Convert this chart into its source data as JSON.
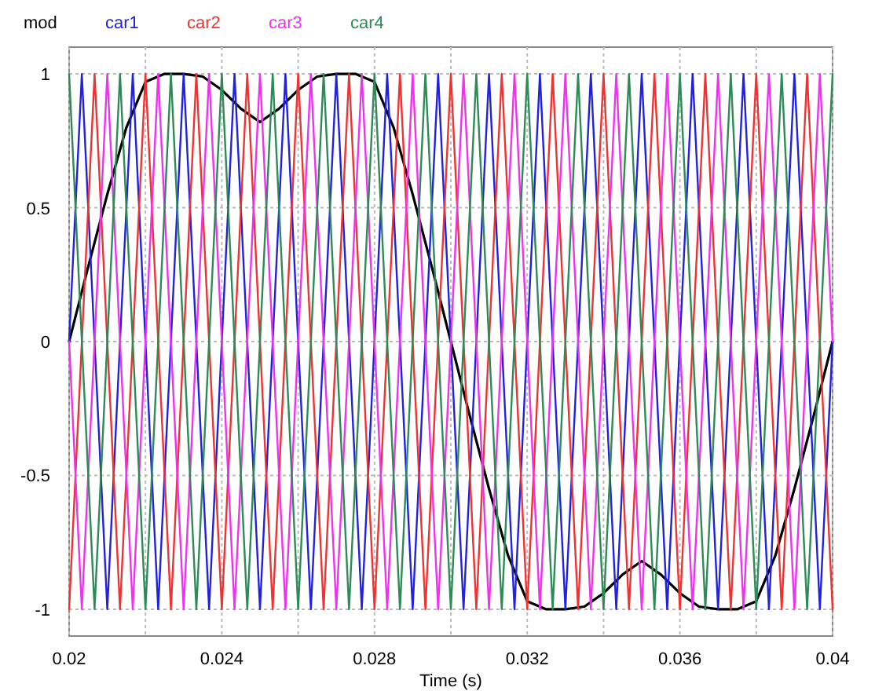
{
  "chart_data": {
    "type": "line",
    "xlabel": "Time (s)",
    "xlim": [
      0.02,
      0.04
    ],
    "ylim": [
      -1.1,
      1.1
    ],
    "xticks": [
      0.02,
      {
        "value": 0.022,
        "label": null
      },
      0.024,
      {
        "value": 0.026,
        "label": null
      },
      0.028,
      {
        "value": 0.03,
        "label": null
      },
      0.032,
      {
        "value": 0.034,
        "label": null
      },
      0.036,
      {
        "value": 0.038,
        "label": null
      },
      0.04
    ],
    "yticks": [
      -1,
      -0.5,
      0,
      0.5,
      1
    ],
    "grid": true,
    "legend": "top left",
    "marker": "none",
    "line_style": "solid",
    "series": [
      {
        "name": "mod",
        "color": "#000000",
        "x": [
          0.02,
          0.0205,
          0.021,
          0.0215,
          0.022,
          0.0225,
          0.023,
          0.0235,
          0.024,
          0.0245,
          0.025,
          0.0255,
          0.026,
          0.0265,
          0.027,
          0.0275,
          0.028,
          0.0285,
          0.029,
          0.0295,
          0.03,
          0.0305,
          0.031,
          0.0315,
          0.032,
          0.0325,
          0.033,
          0.0335,
          0.034,
          0.0345,
          0.035,
          0.0355,
          0.036,
          0.0365,
          0.037,
          0.0375,
          0.038,
          0.0385,
          0.039,
          0.0395,
          0.04
        ],
        "values": [
          0,
          0.28,
          0.55,
          0.8,
          0.97,
          1,
          1,
          0.99,
          0.94,
          0.87,
          0.82,
          0.87,
          0.94,
          0.99,
          1,
          1,
          0.97,
          0.8,
          0.55,
          0.28,
          0,
          -0.28,
          -0.55,
          -0.8,
          -0.97,
          -1,
          -1,
          -0.99,
          -0.94,
          -0.87,
          -0.82,
          -0.87,
          -0.94,
          -0.99,
          -1,
          -1,
          -0.97,
          -0.8,
          -0.55,
          -0.28,
          0
        ]
      },
      {
        "name": "car1",
        "color": "#2222dd",
        "x": [
          0.02,
          0.020333,
          0.021,
          0.021667,
          0.022333,
          0.023,
          0.023667,
          0.024333,
          0.025,
          0.025667,
          0.026333,
          0.027,
          0.027667,
          0.028333,
          0.029,
          0.029667,
          0.030333,
          0.031,
          0.031667,
          0.032333,
          0.033,
          0.033667,
          0.034333,
          0.035,
          0.035667,
          0.036333,
          0.037,
          0.037667,
          0.038333,
          0.039,
          0.039667,
          0.04
        ],
        "values": [
          0,
          1,
          -1,
          1,
          -1,
          1,
          -1,
          1,
          -1,
          1,
          -1,
          1,
          -1,
          1,
          -1,
          1,
          -1,
          1,
          -1,
          1,
          -1,
          1,
          -1,
          1,
          -1,
          1,
          -1,
          1,
          -1,
          1,
          -1,
          0
        ]
      },
      {
        "name": "car2",
        "color": "#ee3333",
        "x": [
          0.02,
          0.020667,
          0.021333,
          0.022,
          0.022667,
          0.023333,
          0.024,
          0.024667,
          0.025333,
          0.026,
          0.026667,
          0.027333,
          0.028,
          0.028667,
          0.029333,
          0.03,
          0.030667,
          0.031333,
          0.032,
          0.032667,
          0.033333,
          0.034,
          0.034667,
          0.035333,
          0.036,
          0.036667,
          0.037333,
          0.038,
          0.038667,
          0.039333,
          0.04
        ],
        "values": [
          -1,
          1,
          -1,
          1,
          -1,
          1,
          -1,
          1,
          -1,
          1,
          -1,
          1,
          -1,
          1,
          -1,
          1,
          -1,
          1,
          -1,
          1,
          -1,
          1,
          -1,
          1,
          -1,
          1,
          -1,
          1,
          -1,
          1,
          -1
        ]
      },
      {
        "name": "car3",
        "color": "#ee33ee",
        "x": [
          0.02,
          0.020333,
          0.021,
          0.021667,
          0.022333,
          0.023,
          0.023667,
          0.024333,
          0.025,
          0.025667,
          0.026333,
          0.027,
          0.027667,
          0.028333,
          0.029,
          0.029667,
          0.030333,
          0.031,
          0.031667,
          0.032333,
          0.033,
          0.033667,
          0.034333,
          0.035,
          0.035667,
          0.036333,
          0.037,
          0.037667,
          0.038333,
          0.039,
          0.039667,
          0.04
        ],
        "values": [
          0,
          -1,
          1,
          -1,
          1,
          -1,
          1,
          -1,
          1,
          -1,
          1,
          -1,
          1,
          -1,
          1,
          -1,
          1,
          -1,
          1,
          -1,
          1,
          -1,
          1,
          -1,
          1,
          -1,
          1,
          -1,
          1,
          -1,
          1,
          0
        ]
      },
      {
        "name": "car4",
        "color": "#2e8b57",
        "x": [
          0.02,
          0.020667,
          0.021333,
          0.022,
          0.022667,
          0.023333,
          0.024,
          0.024667,
          0.025333,
          0.026,
          0.026667,
          0.027333,
          0.028,
          0.028667,
          0.029333,
          0.03,
          0.030667,
          0.031333,
          0.032,
          0.032667,
          0.033333,
          0.034,
          0.034667,
          0.035333,
          0.036,
          0.036667,
          0.037333,
          0.038,
          0.038667,
          0.039333,
          0.04
        ],
        "values": [
          1,
          -1,
          1,
          -1,
          1,
          -1,
          1,
          -1,
          1,
          -1,
          1,
          -1,
          1,
          -1,
          1,
          -1,
          1,
          -1,
          1,
          -1,
          1,
          -1,
          1,
          -1,
          1,
          -1,
          1,
          -1,
          1,
          -1,
          1
        ]
      }
    ]
  }
}
